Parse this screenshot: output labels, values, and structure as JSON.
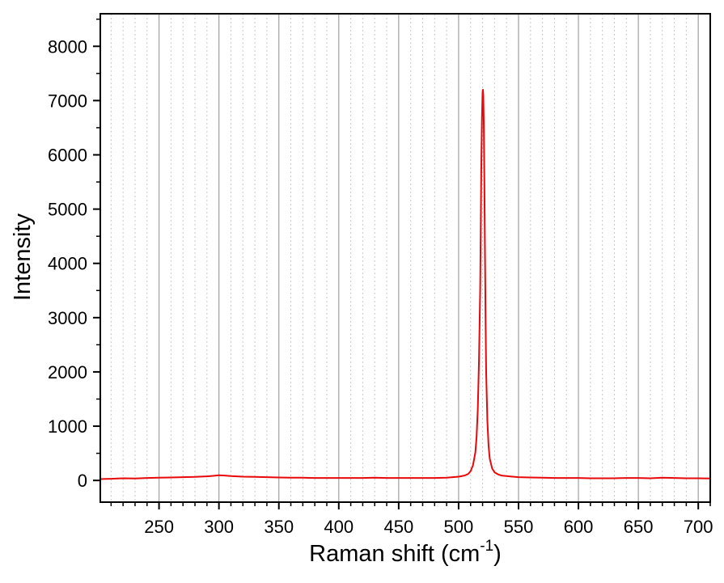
{
  "chart_data": {
    "type": "line",
    "title": "",
    "xlabel": "Raman shift (cm",
    "xlabel_superscript": "-1",
    "xlabel_suffix": ")",
    "ylabel": "Intensity",
    "xlim": [
      201,
      710
    ],
    "ylim": [
      -400,
      8600
    ],
    "x_ticks": [
      250,
      300,
      350,
      400,
      450,
      500,
      550,
      600,
      650,
      700
    ],
    "y_ticks": [
      0,
      1000,
      2000,
      3000,
      4000,
      5000,
      6000,
      7000,
      8000
    ],
    "grid": "vertical",
    "series": [
      {
        "color": "#e8080a",
        "x": [
          201,
          210,
          220,
          230,
          240,
          250,
          260,
          270,
          280,
          290,
          295,
          300,
          305,
          310,
          320,
          330,
          340,
          350,
          360,
          370,
          380,
          390,
          400,
          410,
          420,
          430,
          440,
          450,
          460,
          470,
          480,
          490,
          500,
          505,
          508,
          510,
          512,
          514,
          515,
          516,
          517,
          518,
          518.5,
          519,
          519.5,
          520,
          520.3,
          520.6,
          521,
          521.5,
          522,
          522.5,
          523,
          524,
          525,
          526,
          528,
          530,
          533,
          536,
          540,
          545,
          550,
          560,
          570,
          580,
          590,
          600,
          610,
          620,
          630,
          640,
          650,
          660,
          670,
          680,
          690,
          700,
          710
        ],
        "y": [
          25,
          30,
          40,
          35,
          45,
          50,
          55,
          60,
          65,
          75,
          85,
          95,
          90,
          80,
          70,
          65,
          60,
          55,
          50,
          50,
          45,
          45,
          45,
          45,
          45,
          50,
          45,
          45,
          45,
          45,
          45,
          50,
          70,
          90,
          120,
          170,
          280,
          520,
          800,
          1300,
          2200,
          3500,
          4700,
          5900,
          6700,
          7150,
          7200,
          7100,
          6600,
          5500,
          4200,
          3000,
          2000,
          1100,
          640,
          400,
          220,
          150,
          110,
          90,
          80,
          70,
          60,
          55,
          50,
          45,
          45,
          45,
          40,
          40,
          40,
          45,
          45,
          40,
          50,
          45,
          40,
          40,
          35
        ]
      }
    ]
  }
}
